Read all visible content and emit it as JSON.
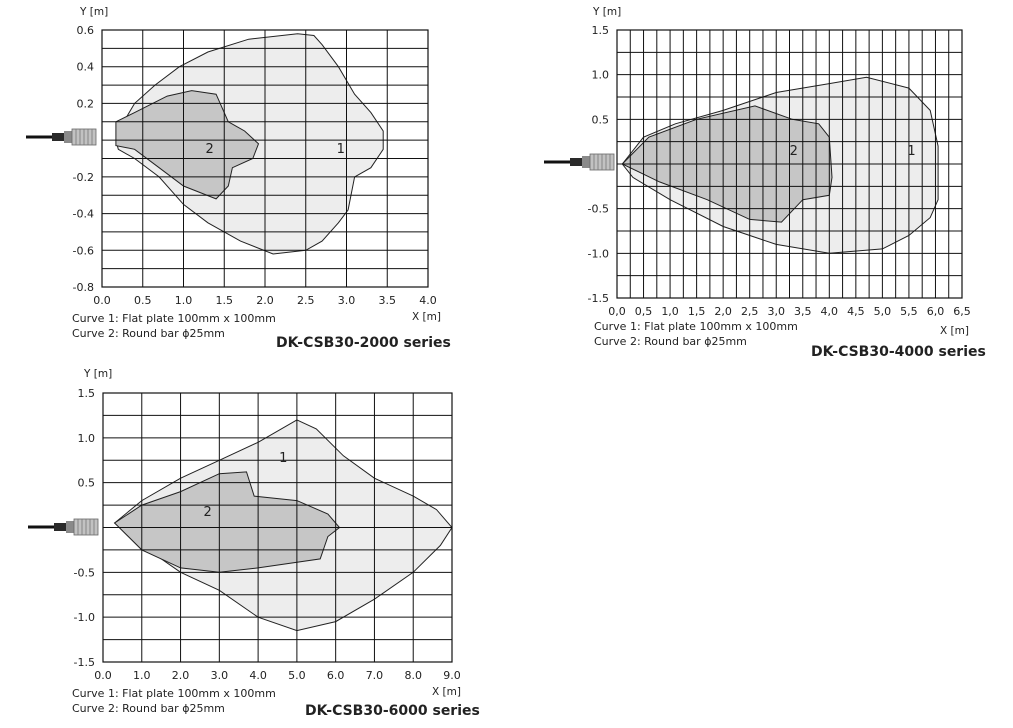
{
  "chart_data": [
    {
      "type": "area",
      "title": "DK-CSB30-2000 series",
      "xlabel": "X [m]",
      "ylabel": "Y [m]",
      "xlim": [
        0,
        4.0
      ],
      "ylim": [
        -0.8,
        0.6
      ],
      "xticks": [
        "0.0",
        "0.5",
        "1.0",
        "1.5",
        "2.0",
        "2.5",
        "3.0",
        "3.5",
        "4.0"
      ],
      "yticks": [
        "0.6",
        "0.4",
        "0.2",
        "",
        "-0.2",
        "-0.4",
        "-0.6",
        "-0.8"
      ],
      "xgrid_step": 0.5,
      "ygrid_step": 0.1,
      "grid": true,
      "captions": [
        "Curve 1: Flat plate 100mm x 100mm",
        "Curve 2: Round bar ϕ25mm"
      ],
      "series": [
        {
          "name": "1",
          "label_at": [
            2.93,
            -0.07
          ],
          "fill": "#ededed",
          "points": [
            [
              0.17,
              0.0
            ],
            [
              0.2,
              0.05
            ],
            [
              0.4,
              0.2
            ],
            [
              0.65,
              0.3
            ],
            [
              0.95,
              0.4
            ],
            [
              1.3,
              0.48
            ],
            [
              1.8,
              0.55
            ],
            [
              2.4,
              0.58
            ],
            [
              2.6,
              0.57
            ],
            [
              2.7,
              0.52
            ],
            [
              2.9,
              0.4
            ],
            [
              3.1,
              0.25
            ],
            [
              3.3,
              0.15
            ],
            [
              3.45,
              0.05
            ],
            [
              3.45,
              -0.05
            ],
            [
              3.3,
              -0.15
            ],
            [
              3.1,
              -0.2
            ],
            [
              3.02,
              -0.38
            ],
            [
              2.9,
              -0.45
            ],
            [
              2.7,
              -0.55
            ],
            [
              2.5,
              -0.6
            ],
            [
              2.1,
              -0.62
            ],
            [
              1.7,
              -0.55
            ],
            [
              1.3,
              -0.45
            ],
            [
              1.0,
              -0.35
            ],
            [
              0.7,
              -0.2
            ],
            [
              0.4,
              -0.1
            ],
            [
              0.2,
              -0.05
            ],
            [
              0.17,
              0.0
            ]
          ]
        },
        {
          "name": "2",
          "label_at": [
            1.32,
            -0.07
          ],
          "fill": "#c6c6c6",
          "points": [
            [
              0.17,
              0.1
            ],
            [
              0.4,
              0.15
            ],
            [
              0.8,
              0.24
            ],
            [
              1.1,
              0.27
            ],
            [
              1.4,
              0.25
            ],
            [
              1.55,
              0.1
            ],
            [
              1.75,
              0.05
            ],
            [
              1.92,
              -0.02
            ],
            [
              1.85,
              -0.1
            ],
            [
              1.6,
              -0.15
            ],
            [
              1.55,
              -0.25
            ],
            [
              1.4,
              -0.32
            ],
            [
              1.0,
              -0.25
            ],
            [
              0.7,
              -0.15
            ],
            [
              0.4,
              -0.05
            ],
            [
              0.17,
              -0.03
            ],
            [
              0.17,
              0.1
            ]
          ]
        }
      ]
    },
    {
      "type": "area",
      "title": "DK-CSB30-4000 series",
      "xlabel": "X [m]",
      "ylabel": "Y [m]",
      "xlim": [
        0,
        6.5
      ],
      "ylim": [
        -1.5,
        1.5
      ],
      "xticks": [
        "0,0",
        "0,5",
        "1,0",
        "1,5",
        "2,0",
        "2,5",
        "3,0",
        "3,5",
        "4,0",
        "4,5",
        "5,0",
        "5,5",
        "6,0",
        "6,5"
      ],
      "yticks": [
        "1.5",
        "1.0",
        "0.5",
        "",
        "-0.5",
        "-1.0",
        "-1.5"
      ],
      "xgrid_step": 0.25,
      "ygrid_step": 0.25,
      "grid": true,
      "captions": [
        "Curve 1: Flat plate 100mm x 100mm",
        "Curve 2: Round bar ϕ25mm"
      ],
      "series": [
        {
          "name": "1",
          "label_at": [
            5.55,
            0.1
          ],
          "fill": "#ededed",
          "points": [
            [
              0.1,
              0.0
            ],
            [
              0.5,
              0.3
            ],
            [
              1.1,
              0.45
            ],
            [
              2.0,
              0.6
            ],
            [
              3.0,
              0.8
            ],
            [
              4.0,
              0.9
            ],
            [
              4.7,
              0.97
            ],
            [
              5.5,
              0.85
            ],
            [
              5.9,
              0.6
            ],
            [
              6.05,
              0.2
            ],
            [
              6.05,
              -0.4
            ],
            [
              5.9,
              -0.6
            ],
            [
              5.5,
              -0.8
            ],
            [
              5.0,
              -0.95
            ],
            [
              4.0,
              -1.0
            ],
            [
              3.0,
              -0.9
            ],
            [
              2.0,
              -0.7
            ],
            [
              1.0,
              -0.4
            ],
            [
              0.3,
              -0.15
            ],
            [
              0.1,
              0.0
            ]
          ]
        },
        {
          "name": "2",
          "label_at": [
            3.33,
            0.1
          ],
          "fill": "#c6c6c6",
          "points": [
            [
              0.1,
              0.0
            ],
            [
              0.6,
              0.3
            ],
            [
              1.5,
              0.5
            ],
            [
              2.6,
              0.65
            ],
            [
              3.3,
              0.5
            ],
            [
              3.8,
              0.45
            ],
            [
              4.0,
              0.3
            ],
            [
              4.05,
              -0.15
            ],
            [
              4.0,
              -0.35
            ],
            [
              3.5,
              -0.4
            ],
            [
              3.1,
              -0.65
            ],
            [
              2.5,
              -0.62
            ],
            [
              1.7,
              -0.4
            ],
            [
              0.8,
              -0.2
            ],
            [
              0.1,
              0.0
            ]
          ]
        }
      ]
    },
    {
      "type": "area",
      "title": "DK-CSB30-6000 series",
      "xlabel": "X [m]",
      "ylabel": "Y [m]",
      "xlim": [
        0,
        9.0
      ],
      "ylim": [
        -1.5,
        1.5
      ],
      "xticks": [
        "0.0",
        "1.0",
        "2.0",
        "3.0",
        "4.0",
        "5.0",
        "6.0",
        "7.0",
        "8.0",
        "9.0"
      ],
      "yticks": [
        "1.5",
        "1.0",
        "0.5",
        "",
        "-0.5",
        "-1.0",
        "-1.5"
      ],
      "xgrid_step": 1.0,
      "ygrid_step": 0.25,
      "grid": true,
      "captions": [
        "Curve 1: Flat plate 100mm x 100mm",
        "Curve 2: Round bar ϕ25mm"
      ],
      "series": [
        {
          "name": "1",
          "label_at": [
            4.65,
            0.73
          ],
          "fill": "#ededed",
          "points": [
            [
              0.3,
              0.05
            ],
            [
              1.0,
              0.3
            ],
            [
              2.0,
              0.55
            ],
            [
              3.0,
              0.75
            ],
            [
              4.0,
              0.95
            ],
            [
              5.0,
              1.2
            ],
            [
              5.5,
              1.1
            ],
            [
              6.2,
              0.8
            ],
            [
              7.0,
              0.55
            ],
            [
              8.0,
              0.35
            ],
            [
              8.6,
              0.2
            ],
            [
              9.0,
              0.0
            ],
            [
              8.7,
              -0.2
            ],
            [
              8.0,
              -0.5
            ],
            [
              7.0,
              -0.8
            ],
            [
              6.0,
              -1.05
            ],
            [
              5.0,
              -1.15
            ],
            [
              4.0,
              -1.0
            ],
            [
              3.0,
              -0.7
            ],
            [
              2.0,
              -0.5
            ],
            [
              1.0,
              -0.2
            ],
            [
              0.3,
              0.05
            ]
          ]
        },
        {
          "name": "2",
          "label_at": [
            2.7,
            0.13
          ],
          "fill": "#c6c6c6",
          "points": [
            [
              0.3,
              0.05
            ],
            [
              1.0,
              0.25
            ],
            [
              2.0,
              0.4
            ],
            [
              3.0,
              0.6
            ],
            [
              3.7,
              0.62
            ],
            [
              3.9,
              0.35
            ],
            [
              5.0,
              0.3
            ],
            [
              5.8,
              0.15
            ],
            [
              6.1,
              0.0
            ],
            [
              5.8,
              -0.1
            ],
            [
              5.6,
              -0.35
            ],
            [
              4.0,
              -0.45
            ],
            [
              3.0,
              -0.5
            ],
            [
              2.0,
              -0.45
            ],
            [
              1.0,
              -0.25
            ],
            [
              0.3,
              0.05
            ]
          ]
        }
      ]
    }
  ]
}
